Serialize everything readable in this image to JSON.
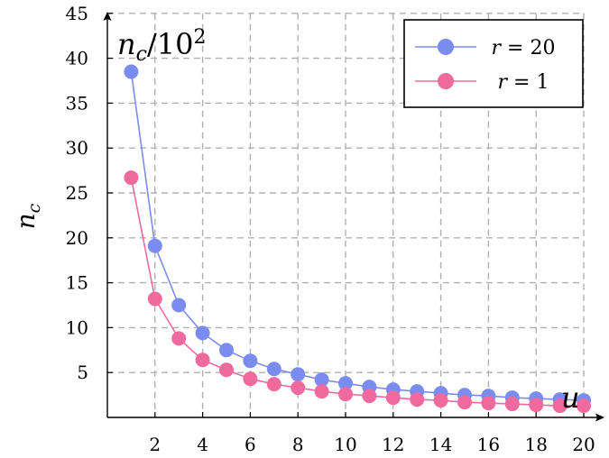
{
  "chart_data": {
    "type": "line",
    "title": "",
    "ylabel": "n_c",
    "y_unit_note": "n_c/10^2",
    "xlabel": "u",
    "xlim": [
      0,
      20
    ],
    "ylim": [
      0,
      45
    ],
    "grid": true,
    "legend_position": "top-right",
    "x_ticks": [
      2,
      4,
      6,
      8,
      10,
      12,
      14,
      16,
      18,
      20
    ],
    "y_ticks": [
      5,
      10,
      15,
      20,
      25,
      30,
      35,
      40,
      45
    ],
    "x": [
      1,
      2,
      3,
      4,
      5,
      6,
      7,
      8,
      9,
      10,
      11,
      12,
      13,
      14,
      15,
      16,
      17,
      18,
      19,
      20
    ],
    "series": [
      {
        "name": "r = 20",
        "color": "#7b8cf0",
        "values": [
          38.5,
          19.1,
          12.5,
          9.4,
          7.5,
          6.3,
          5.4,
          4.8,
          4.2,
          3.8,
          3.4,
          3.1,
          2.9,
          2.7,
          2.5,
          2.4,
          2.2,
          2.1,
          2.0,
          1.9
        ]
      },
      {
        "name": "r = 1",
        "color": "#f06a9e",
        "values": [
          26.7,
          13.2,
          8.8,
          6.4,
          5.3,
          4.3,
          3.7,
          3.3,
          2.9,
          2.6,
          2.4,
          2.2,
          2.0,
          1.9,
          1.7,
          1.6,
          1.5,
          1.4,
          1.3,
          1.3
        ]
      }
    ]
  }
}
